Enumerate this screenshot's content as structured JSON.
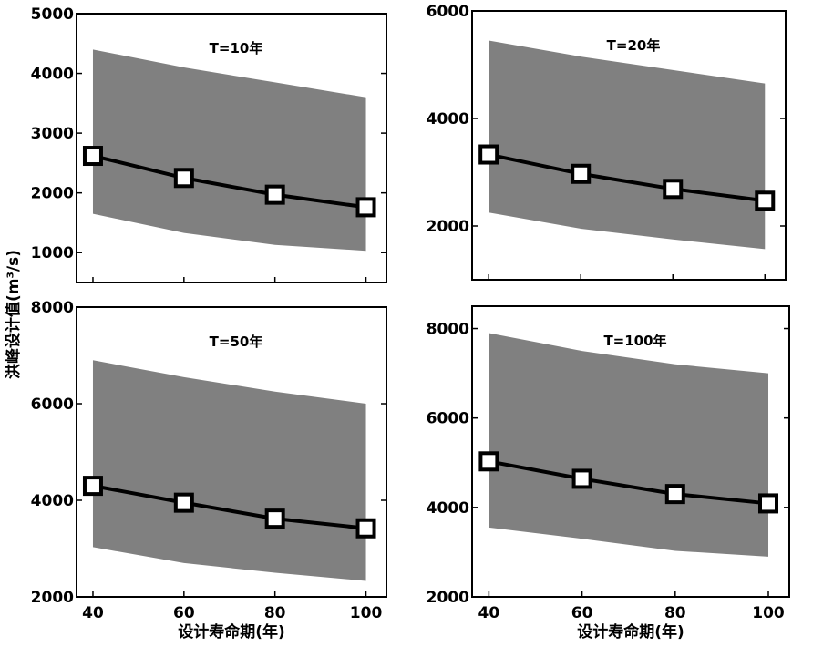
{
  "ylabel": "洪峰设计值(m³/s)",
  "xlabel": "设计寿命期(年)",
  "colors": {
    "band": "#808080",
    "line": "#000000",
    "marker_fill": "#ffffff"
  },
  "chart_data": [
    {
      "type": "line",
      "title": "T=10年",
      "x": [
        40,
        60,
        80,
        100
      ],
      "values": [
        2620,
        2250,
        1970,
        1760
      ],
      "band_upper": [
        4400,
        4100,
        3850,
        3600
      ],
      "band_lower": [
        1650,
        1330,
        1130,
        1030
      ],
      "ylim": [
        500,
        5000
      ],
      "yticks": [
        1000,
        2000,
        3000,
        4000,
        5000
      ],
      "xlim": [
        36.4,
        104.5
      ],
      "xticks": [],
      "marker": "square",
      "grid": false
    },
    {
      "type": "line",
      "title": "T=20年",
      "x": [
        40,
        60,
        80,
        100
      ],
      "values": [
        3330,
        2970,
        2690,
        2470
      ],
      "band_upper": [
        5450,
        5150,
        4900,
        4650
      ],
      "band_lower": [
        2250,
        1950,
        1750,
        1570
      ],
      "ylim": [
        1000,
        6000
      ],
      "yticks": [
        2000,
        4000,
        6000
      ],
      "xlim": [
        36.4,
        104.5
      ],
      "xticks": [],
      "marker": "square",
      "grid": false
    },
    {
      "type": "line",
      "title": "T=50年",
      "x": [
        40,
        60,
        80,
        100
      ],
      "values": [
        4300,
        3950,
        3620,
        3420
      ],
      "band_upper": [
        6900,
        6550,
        6250,
        6000
      ],
      "band_lower": [
        3030,
        2700,
        2500,
        2330
      ],
      "ylim": [
        2000,
        8000
      ],
      "yticks": [
        2000,
        4000,
        6000,
        8000
      ],
      "xlim": [
        36.4,
        104.5
      ],
      "xticks": [
        40,
        60,
        80,
        100
      ],
      "marker": "square",
      "grid": false
    },
    {
      "type": "line",
      "title": "T=100年",
      "x": [
        40,
        60,
        80,
        100
      ],
      "values": [
        5030,
        4640,
        4300,
        4090
      ],
      "band_upper": [
        7900,
        7500,
        7200,
        7000
      ],
      "band_lower": [
        3550,
        3300,
        3030,
        2900
      ],
      "ylim": [
        2000,
        8500
      ],
      "yticks": [
        2000,
        4000,
        6000,
        8000
      ],
      "xlim": [
        36.4,
        104.5
      ],
      "xticks": [
        40,
        60,
        80,
        100
      ],
      "marker": "square",
      "grid": false
    }
  ]
}
